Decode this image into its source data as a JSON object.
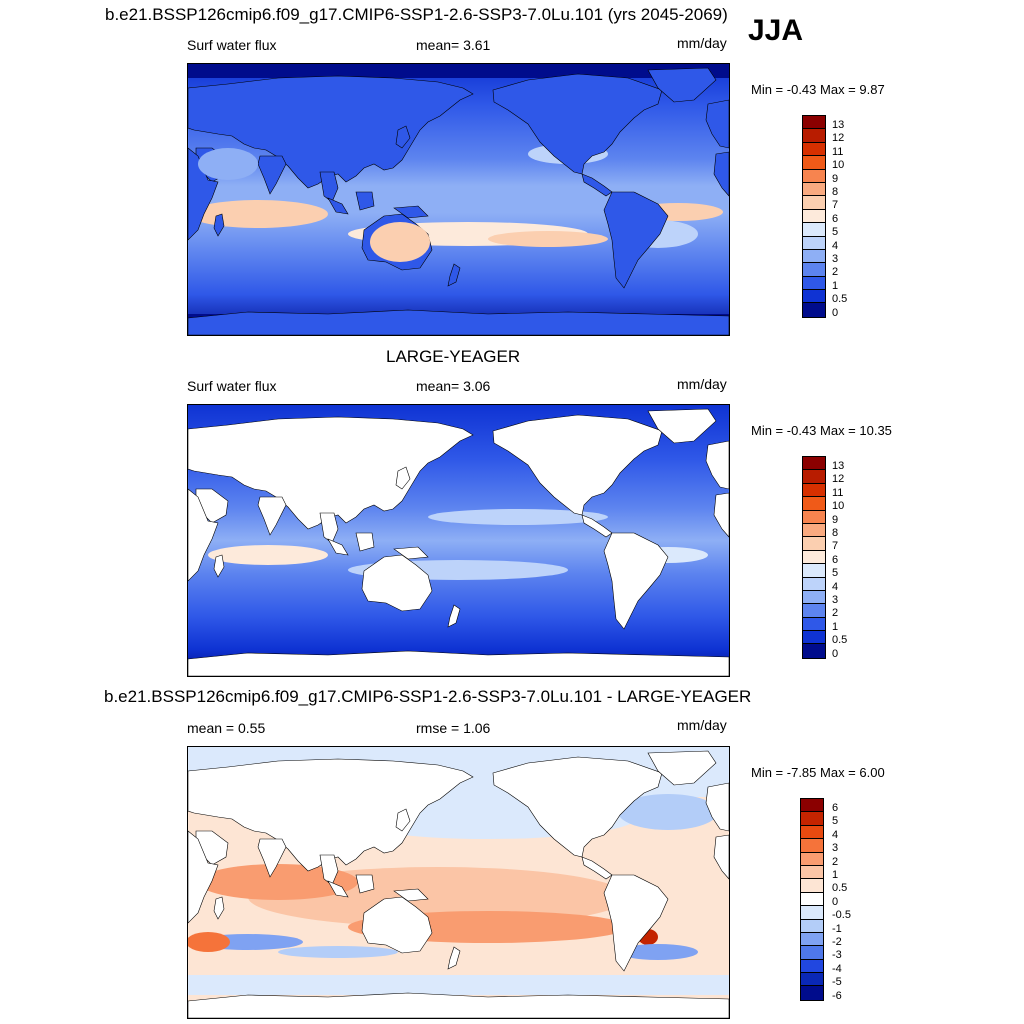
{
  "header": {
    "run_title": "b.e21.BSSP126cmip6.f09_g17.CMIP6-SSP1-2.6-SSP3-7.0Lu.101 (yrs 2045-2069)",
    "season": "JJA"
  },
  "panel1": {
    "variable": "Surf water flux",
    "mean_text": "mean=   3.61",
    "units": "mm/day",
    "minmax": "Min =  -0.43 Max =   9.87",
    "colorbar_labels": [
      "13",
      "12",
      "11",
      "10",
      "9",
      "8",
      "7",
      "6",
      "5",
      "4",
      "3",
      "2",
      "1",
      "0.5",
      "0"
    ]
  },
  "panel2": {
    "dataset_title": "LARGE-YEAGER",
    "variable": "Surf water flux",
    "mean_text": "mean=   3.06",
    "units": "mm/day",
    "minmax": "Min =  -0.43 Max =  10.35",
    "colorbar_labels": [
      "13",
      "12",
      "11",
      "10",
      "9",
      "8",
      "7",
      "6",
      "5",
      "4",
      "3",
      "2",
      "1",
      "0.5",
      "0"
    ]
  },
  "panel3": {
    "diff_title": "b.e21.BSSP126cmip6.f09_g17.CMIP6-SSP1-2.6-SSP3-7.0Lu.101 - LARGE-YEAGER",
    "mean_text": "mean =   0.55",
    "rmse_text": "rmse =   1.06",
    "units": "mm/day",
    "minmax": "Min =  -7.85 Max =   6.00",
    "colorbar_labels": [
      "6",
      "5",
      "4",
      "3",
      "2",
      "1",
      "0.5",
      "0",
      "-0.5",
      "-1",
      "-2",
      "-3",
      "-4",
      "-5",
      "-6"
    ]
  },
  "colors": {
    "abs_scale": [
      "#8b0000",
      "#b81c00",
      "#d73000",
      "#f05a18",
      "#f7844f",
      "#f9aa80",
      "#fbcfb0",
      "#fdeadb",
      "#dbe9fc",
      "#bdd3fa",
      "#8eaff5",
      "#5d84ef",
      "#2f58e8",
      "#0f33d3",
      "#000c8c"
    ],
    "diff_scale": [
      "#8b0000",
      "#c42400",
      "#e84a10",
      "#f5733a",
      "#f99c70",
      "#fbc5a6",
      "#fde5d4",
      "#ffffff",
      "#dbe9fc",
      "#b3cdf8",
      "#7fa2f2",
      "#4f78ea",
      "#2147e0",
      "#0a28b6",
      "#000c8c"
    ]
  }
}
